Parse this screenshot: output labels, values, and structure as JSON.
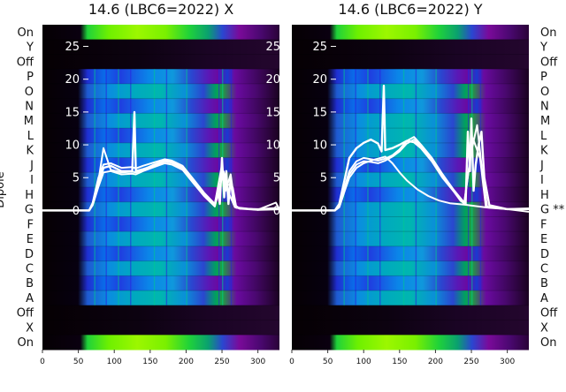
{
  "chart_data": [
    {
      "type": "heatmap",
      "title": "14.6 (LBC6=2022) X",
      "ylabel": "Dipole",
      "xlim": [
        0,
        330
      ],
      "x_ticks": [
        0,
        50,
        100,
        150,
        200,
        250,
        300
      ],
      "row_labels": [
        "On",
        "Y",
        "Off",
        "P",
        "O",
        "N",
        "M",
        "L",
        "K",
        "J",
        "I",
        "H",
        "G",
        "F",
        "E",
        "D",
        "C",
        "B",
        "A",
        "Off",
        "X",
        "On"
      ],
      "row_label_suffix": {},
      "overlay_ylim": [
        -21.2,
        28.3
      ],
      "overlay_ticks": [
        0,
        5,
        10,
        15,
        20,
        25
      ],
      "overlay_series": [
        {
          "x": [
            0,
            65,
            70,
            78,
            85,
            95,
            110,
            125,
            128,
            130,
            140,
            155,
            170,
            180,
            195,
            210,
            225,
            240,
            244,
            247,
            250,
            253,
            256,
            259,
            262,
            265,
            268,
            275,
            300,
            330
          ],
          "y": [
            0,
            0,
            1,
            4,
            6.5,
            6.8,
            6,
            6,
            15,
            6,
            6.3,
            6.8,
            7.5,
            7.3,
            6.5,
            4.5,
            2.5,
            0.8,
            3,
            1,
            8,
            2,
            6,
            1,
            5,
            2,
            0.6,
            0.3,
            0.1,
            0.2
          ]
        },
        {
          "x": [
            0,
            65,
            70,
            78,
            85,
            95,
            110,
            125,
            130,
            140,
            155,
            170,
            180,
            195,
            210,
            225,
            240,
            250,
            255,
            262,
            268,
            275,
            300,
            330
          ],
          "y": [
            0,
            0,
            1.2,
            5,
            7,
            7.2,
            6.5,
            6.6,
            6.4,
            6.8,
            7.3,
            7.8,
            7.6,
            6.8,
            4.8,
            2.7,
            1,
            7,
            3,
            5.5,
            0.8,
            0.3,
            0.2,
            0.4
          ]
        },
        {
          "x": [
            0,
            65,
            70,
            78,
            85,
            95,
            110,
            125,
            130,
            140,
            155,
            170,
            180,
            195,
            210,
            225,
            240,
            250,
            258,
            265,
            270,
            300,
            330
          ],
          "y": [
            0,
            0,
            0.8,
            3.6,
            5.8,
            6,
            5.5,
            5.6,
            5.5,
            6,
            6.6,
            7.2,
            7,
            6.2,
            4.2,
            2.2,
            0.6,
            5,
            4,
            3.5,
            0.4,
            0.1,
            0.3
          ]
        },
        {
          "x": [
            0,
            65,
            70,
            78,
            85,
            95,
            110,
            125,
            130,
            140,
            155,
            170,
            180,
            195,
            210,
            225,
            240,
            252,
            260,
            268,
            300,
            325,
            330
          ],
          "y": [
            0,
            0,
            1,
            4.5,
            9.5,
            6.2,
            5.8,
            5.9,
            5.8,
            6.2,
            7,
            7.6,
            7.4,
            6.6,
            4.5,
            2.4,
            0.7,
            6,
            2.5,
            0.5,
            0.1,
            1.2,
            0.2
          ]
        }
      ],
      "colormap": [
        "#050003",
        "#3a0050",
        "#7a0a9a",
        "#1f2fd2",
        "#0a86e8",
        "#00b6b0",
        "#1fd23a",
        "#9cf700"
      ],
      "band_rows": {
        "beam": [
          1,
          20
        ],
        "off": [
          2,
          19
        ]
      }
    },
    {
      "type": "heatmap",
      "title": "14.6 (LBC6=2022) Y",
      "ylabel": "",
      "xlim": [
        0,
        330
      ],
      "x_ticks": [
        0,
        50,
        100,
        150,
        200,
        250,
        300
      ],
      "row_labels": [
        "On",
        "Y",
        "Off",
        "P",
        "O",
        "N",
        "M",
        "L",
        "K",
        "J",
        "I",
        "H",
        "G",
        "F",
        "E",
        "D",
        "C",
        "B",
        "A",
        "Off",
        "X",
        "On"
      ],
      "row_label_suffix": {
        "12": " **"
      },
      "overlay_ylim": [
        -21.2,
        28.3
      ],
      "overlay_ticks": [
        0,
        5,
        10,
        15,
        20,
        25
      ],
      "overlay_series": [
        {
          "x": [
            0,
            60,
            66,
            72,
            80,
            90,
            100,
            110,
            120,
            125,
            128,
            130,
            140,
            150,
            160,
            170,
            180,
            195,
            210,
            225,
            235,
            242,
            245,
            248,
            250,
            253,
            256,
            260,
            264,
            268,
            275,
            300,
            330
          ],
          "y": [
            0,
            0,
            1,
            4,
            8,
            9.5,
            10.3,
            10.8,
            10.2,
            9,
            19,
            9.2,
            9.5,
            10,
            10.6,
            10.4,
            9.5,
            7.5,
            5,
            3,
            1.5,
            1,
            12,
            6,
            14,
            3,
            7,
            10,
            12,
            5,
            0.8,
            0.2,
            0.3
          ]
        },
        {
          "x": [
            0,
            60,
            66,
            72,
            80,
            90,
            100,
            110,
            120,
            130,
            140,
            150,
            160,
            170,
            180,
            195,
            210,
            225,
            240,
            250,
            258,
            265,
            272,
            300,
            330
          ],
          "y": [
            0,
            0,
            0.6,
            3,
            6,
            7.5,
            8,
            7.8,
            7.6,
            7.9,
            8.4,
            9.3,
            10.6,
            11.2,
            10,
            8,
            5.5,
            3.2,
            1.2,
            9,
            13,
            6,
            0.5,
            0.2,
            0.2
          ]
        },
        {
          "x": [
            0,
            60,
            66,
            72,
            80,
            90,
            100,
            110,
            120,
            130,
            140,
            150,
            160,
            170,
            180,
            195,
            210,
            225,
            240,
            252,
            262,
            270,
            300,
            330
          ],
          "y": [
            0,
            0,
            0.5,
            2.5,
            5.5,
            7,
            7.5,
            7.4,
            7.2,
            7.6,
            8.2,
            9,
            10.2,
            10.8,
            9.8,
            7.8,
            5.2,
            3,
            1,
            11,
            8,
            0.6,
            0.2,
            0.2
          ]
        },
        {
          "x": [
            0,
            60,
            66,
            72,
            80,
            90,
            100,
            110,
            120,
            130,
            140,
            150,
            160,
            175,
            190,
            205,
            220,
            240,
            260,
            275,
            300,
            330
          ],
          "y": [
            0,
            0,
            0.5,
            2.5,
            5,
            6.5,
            7.2,
            7.6,
            7.9,
            8.2,
            7.2,
            5.8,
            4.6,
            3.2,
            2.2,
            1.5,
            1.1,
            0.9,
            0.6,
            0.4,
            0.2,
            -0.2
          ]
        }
      ],
      "colormap": [
        "#050003",
        "#3a0050",
        "#7a0a9a",
        "#1f2fd2",
        "#0a86e8",
        "#00b6b0",
        "#1fd23a",
        "#9cf700"
      ],
      "band_rows": {
        "beam": [
          1,
          20
        ],
        "off": [
          2,
          19
        ]
      }
    }
  ]
}
